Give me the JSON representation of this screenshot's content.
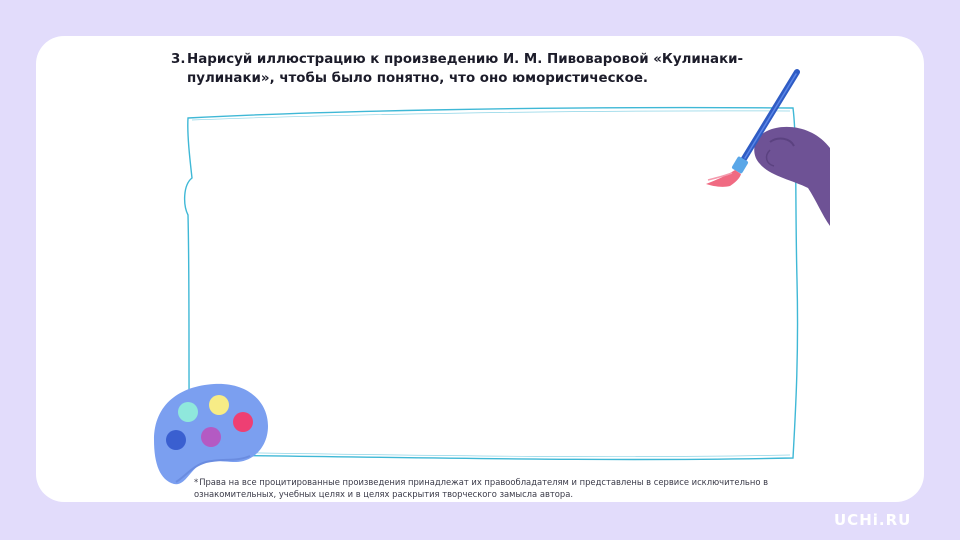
{
  "task": {
    "number": "3.",
    "text": "Нарисуй иллюстрацию к произведению И. М. Пивоваровой «Кулинаки-пулинаки», чтобы было понятно, что оно юмористическое."
  },
  "footnote": {
    "star": "*",
    "text": "Права на все процитированные произведения принадлежат их правообладателям и представлены в сервисе исключительно в ознакомительных, учебных целях и в целях раскрытия творческого замысла автора."
  },
  "brand": {
    "logo": "UCHi.RU"
  },
  "icons": {
    "paintbrush": "paintbrush-in-hand-icon",
    "palette": "paint-palette-icon"
  },
  "colors": {
    "background": "#e2dcfb",
    "card": "#ffffff",
    "frame_stroke": "#3fb8d6",
    "hand": "#6e5295",
    "brush_handle": "#2f5cc4",
    "brush_tip": "#f06a82",
    "palette": "#7b9ff0",
    "paint_mint": "#8fe8dc",
    "paint_yellow": "#f7ec86",
    "paint_pink": "#ee3f73",
    "paint_blue": "#3a5fd0",
    "paint_purple": "#b45ac3"
  }
}
